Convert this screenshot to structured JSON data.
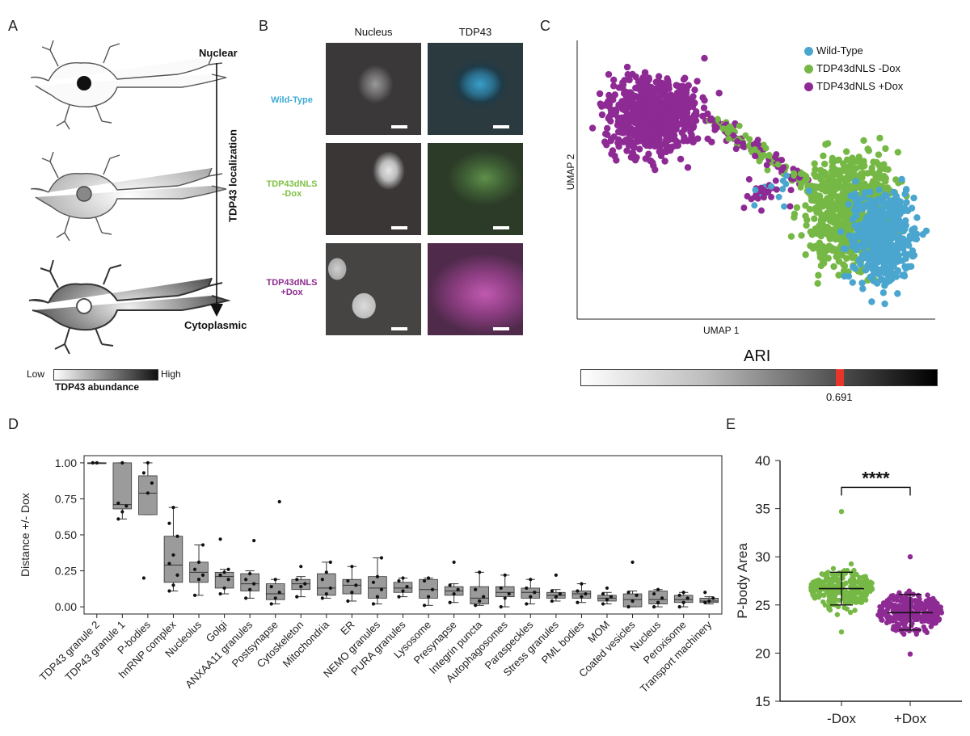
{
  "panels": {
    "a": "A",
    "b": "B",
    "c": "C",
    "d": "D",
    "e": "E"
  },
  "panel_a": {
    "nuclear_label": "Nuclear",
    "cytoplasmic_label": "Cytoplasmic",
    "axis_label": "TDP43 localization",
    "legend_low": "Low",
    "legend_high": "High",
    "legend_title": "TDP43 abundance"
  },
  "panel_b": {
    "col_nucleus": "Nucleus",
    "col_tdp43": "TDP43",
    "rows": [
      {
        "label_line1": "Wild-Type",
        "label_line2": "",
        "color": "#3fa9d6"
      },
      {
        "label_line1": "TDP43dNLS",
        "label_line2": "-Dox",
        "color": "#7dc242"
      },
      {
        "label_line1": "TDP43dNLS",
        "label_line2": "+Dox",
        "color": "#8e2a8e"
      }
    ]
  },
  "panel_c": {
    "legend": [
      {
        "label": "Wild-Type",
        "color": "#4aa6cf"
      },
      {
        "label": "TDP43dNLS -Dox",
        "color": "#76b845"
      },
      {
        "label": "TDP43dNLS +Dox",
        "color": "#8e2a94"
      }
    ],
    "xlabel": "UMAP 1",
    "ylabel": "UMAP 2",
    "ari_title": "ARI",
    "ari_value": "0.691",
    "ari_marker_color": "#e8352a"
  },
  "chart_data": [
    {
      "type": "box",
      "panel": "D",
      "ylabel": "Distance +/- Dox",
      "ylim": [
        -0.05,
        1.05
      ],
      "yticks": [
        "0.00",
        "0.25",
        "0.50",
        "0.75",
        "1.00"
      ],
      "ytick_values": [
        0,
        0.25,
        0.5,
        0.75,
        1.0
      ],
      "categories": [
        "TDP43 granule 2",
        "TDP43 granule 1",
        "P-bodies",
        "hnRNP complex",
        "Nucleolus",
        "Golgi",
        "ANXAA11 granules",
        "Postsynapse",
        "Cytoskeleton",
        "Mitochondria",
        "ER",
        "NEMO granules",
        "PURA granules",
        "Lysosome",
        "Presynapse",
        "Integrin puncta",
        "Autophagosomes",
        "Paraspeckles",
        "Stress granules",
        "PML bodies",
        "MOM",
        "Coated vesicles",
        "Nucleus",
        "Peroxisome",
        "Transport machinery"
      ],
      "boxes": [
        {
          "q1": 1.0,
          "med": 1.0,
          "q3": 1.0,
          "wl": 1.0,
          "wh": 1.0,
          "pts": [
            1.0,
            1.0
          ]
        },
        {
          "q1": 0.68,
          "med": 0.71,
          "q3": 1.0,
          "wl": 0.61,
          "wh": 1.0,
          "pts": [
            0.61,
            0.66,
            0.7,
            0.72,
            1.0
          ]
        },
        {
          "q1": 0.64,
          "med": 0.79,
          "q3": 0.91,
          "wl": 0.64,
          "wh": 1.0,
          "pts": [
            0.2,
            0.79,
            0.86,
            0.93,
            1.0
          ]
        },
        {
          "q1": 0.17,
          "med": 0.29,
          "q3": 0.49,
          "wl": 0.11,
          "wh": 0.69,
          "pts": [
            0.11,
            0.15,
            0.22,
            0.3,
            0.36,
            0.49,
            0.58,
            0.69
          ]
        },
        {
          "q1": 0.17,
          "med": 0.24,
          "q3": 0.31,
          "wl": 0.08,
          "wh": 0.43,
          "pts": [
            0.08,
            0.19,
            0.22,
            0.26,
            0.31,
            0.43
          ]
        },
        {
          "q1": 0.13,
          "med": 0.21,
          "q3": 0.24,
          "wl": 0.09,
          "wh": 0.26,
          "pts": [
            0.09,
            0.13,
            0.19,
            0.22,
            0.24,
            0.26,
            0.47
          ]
        },
        {
          "q1": 0.11,
          "med": 0.16,
          "q3": 0.23,
          "wl": 0.06,
          "wh": 0.25,
          "pts": [
            0.06,
            0.12,
            0.16,
            0.19,
            0.23,
            0.46
          ]
        },
        {
          "q1": 0.05,
          "med": 0.09,
          "q3": 0.16,
          "wl": 0.02,
          "wh": 0.19,
          "pts": [
            0.02,
            0.06,
            0.1,
            0.14,
            0.19,
            0.73
          ]
        },
        {
          "q1": 0.12,
          "med": 0.16,
          "q3": 0.19,
          "wl": 0.07,
          "wh": 0.21,
          "pts": [
            0.07,
            0.14,
            0.16,
            0.19,
            0.28
          ]
        },
        {
          "q1": 0.08,
          "med": 0.13,
          "q3": 0.23,
          "wl": 0.06,
          "wh": 0.31,
          "pts": [
            0.06,
            0.09,
            0.13,
            0.19,
            0.24,
            0.31
          ]
        },
        {
          "q1": 0.09,
          "med": 0.15,
          "q3": 0.19,
          "wl": 0.04,
          "wh": 0.28,
          "pts": [
            0.04,
            0.1,
            0.15,
            0.18,
            0.28
          ]
        },
        {
          "q1": 0.06,
          "med": 0.13,
          "q3": 0.21,
          "wl": 0.02,
          "wh": 0.34,
          "pts": [
            0.02,
            0.07,
            0.12,
            0.17,
            0.21,
            0.34
          ]
        },
        {
          "q1": 0.1,
          "med": 0.13,
          "q3": 0.17,
          "wl": 0.07,
          "wh": 0.2,
          "pts": [
            0.07,
            0.11,
            0.14,
            0.18,
            0.2
          ]
        },
        {
          "q1": 0.06,
          "med": 0.12,
          "q3": 0.19,
          "wl": 0.01,
          "wh": 0.2,
          "pts": [
            0.01,
            0.07,
            0.12,
            0.18,
            0.2
          ]
        },
        {
          "q1": 0.08,
          "med": 0.11,
          "q3": 0.14,
          "wl": 0.03,
          "wh": 0.16,
          "pts": [
            0.03,
            0.09,
            0.12,
            0.15,
            0.31
          ]
        },
        {
          "q1": 0.02,
          "med": 0.06,
          "q3": 0.14,
          "wl": 0.01,
          "wh": 0.24,
          "pts": [
            0.01,
            0.04,
            0.07,
            0.12,
            0.24
          ]
        },
        {
          "q1": 0.07,
          "med": 0.1,
          "q3": 0.14,
          "wl": 0.0,
          "wh": 0.22,
          "pts": [
            0.0,
            0.06,
            0.09,
            0.13,
            0.22
          ]
        },
        {
          "q1": 0.06,
          "med": 0.1,
          "q3": 0.13,
          "wl": 0.02,
          "wh": 0.19,
          "pts": [
            0.02,
            0.07,
            0.1,
            0.13,
            0.19
          ]
        },
        {
          "q1": 0.06,
          "med": 0.08,
          "q3": 0.1,
          "wl": 0.04,
          "wh": 0.12,
          "pts": [
            0.04,
            0.07,
            0.09,
            0.11,
            0.22
          ]
        },
        {
          "q1": 0.06,
          "med": 0.09,
          "q3": 0.11,
          "wl": 0.03,
          "wh": 0.16,
          "pts": [
            0.03,
            0.07,
            0.09,
            0.11,
            0.16
          ]
        },
        {
          "q1": 0.04,
          "med": 0.06,
          "q3": 0.08,
          "wl": 0.02,
          "wh": 0.1,
          "pts": [
            0.02,
            0.05,
            0.07,
            0.09,
            0.13
          ]
        },
        {
          "q1": 0.0,
          "med": 0.05,
          "q3": 0.09,
          "wl": 0.0,
          "wh": 0.11,
          "pts": [
            0.0,
            0.04,
            0.08,
            0.1,
            0.31
          ]
        },
        {
          "q1": 0.02,
          "med": 0.05,
          "q3": 0.11,
          "wl": 0.0,
          "wh": 0.12,
          "pts": [
            0.0,
            0.03,
            0.06,
            0.09,
            0.12
          ]
        },
        {
          "q1": 0.03,
          "med": 0.05,
          "q3": 0.08,
          "wl": 0.0,
          "wh": 0.1,
          "pts": [
            0.0,
            0.03,
            0.06,
            0.08,
            0.1
          ]
        },
        {
          "q1": 0.03,
          "med": 0.04,
          "q3": 0.06,
          "wl": 0.02,
          "wh": 0.07,
          "pts": [
            0.03,
            0.04,
            0.06,
            0.1
          ]
        }
      ]
    },
    {
      "type": "scatter",
      "panel": "E",
      "ylabel": "P-body Area",
      "ylim": [
        15,
        40
      ],
      "yticks": [
        15,
        20,
        25,
        30,
        35,
        40
      ],
      "categories": [
        "-Dox",
        "+Dox"
      ],
      "colors": [
        "#76b845",
        "#8e2a94"
      ],
      "groups": [
        {
          "name": "-Dox",
          "mean": 26.7,
          "sd_low": 25.0,
          "sd_high": 28.4,
          "min": 22.2,
          "max": 34.7
        },
        {
          "name": "+Dox",
          "mean": 24.2,
          "sd_low": 22.4,
          "sd_high": 26.1,
          "min": 19.9,
          "max": 30.0
        }
      ],
      "significance": "****"
    }
  ]
}
